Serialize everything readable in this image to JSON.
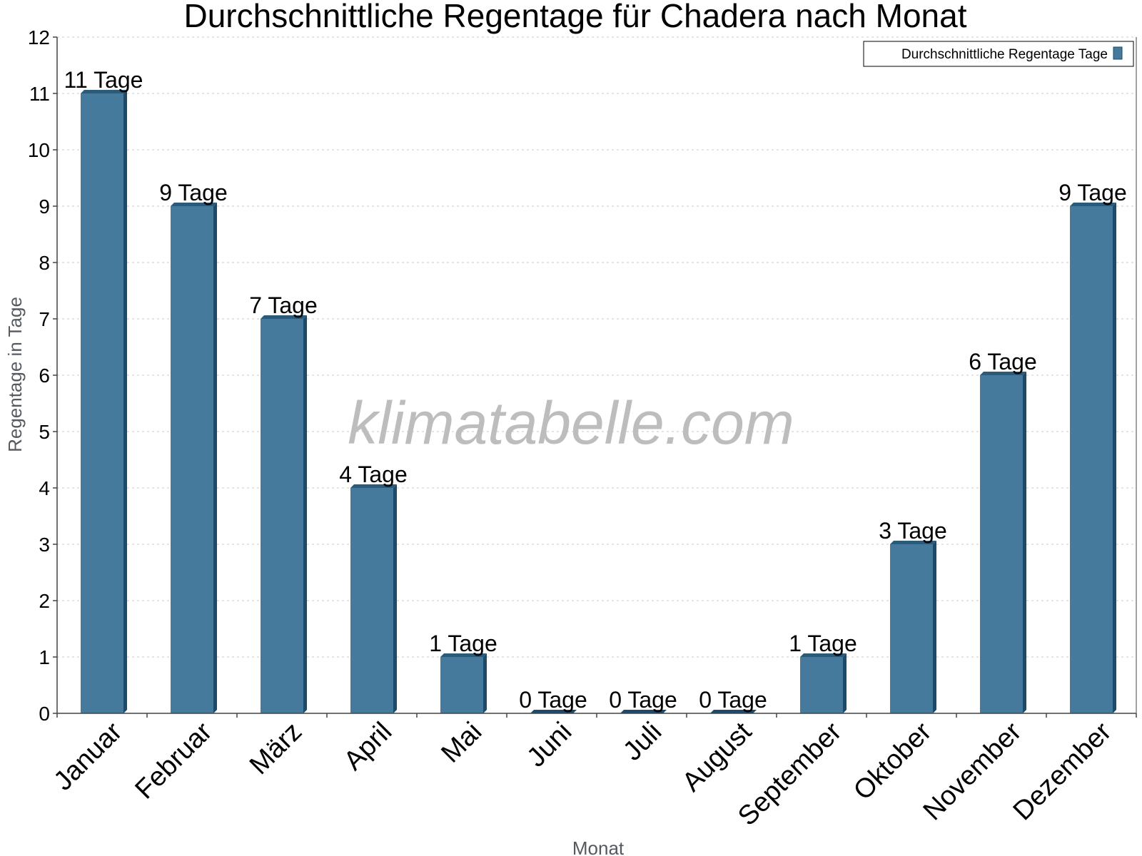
{
  "colors": {
    "bar_front": "#457a9c",
    "bar_side": "#1c4a68",
    "bar_top": "#2a5b7b",
    "axis": "#444444",
    "grid": "#c8c8c8"
  },
  "watermark": "klimatabelle.com",
  "chart_data": {
    "type": "bar",
    "title": "Durchschnittliche Regentage für Chadera nach Monat",
    "xlabel": "Monat",
    "ylabel": "Regentage in Tage",
    "ylim": [
      0,
      12
    ],
    "yticks": [
      0,
      1,
      2,
      3,
      4,
      5,
      6,
      7,
      8,
      9,
      10,
      11,
      12
    ],
    "grid": true,
    "legend_position": "top-right",
    "categories": [
      "Januar",
      "Februar",
      "März",
      "April",
      "Mai",
      "Juni",
      "Juli",
      "August",
      "September",
      "Oktober",
      "November",
      "Dezember"
    ],
    "series": [
      {
        "name": "Durchschnittliche Regentage Tage",
        "values": [
          11,
          9,
          7,
          4,
          1,
          0,
          0,
          0,
          1,
          3,
          6,
          9
        ],
        "data_labels": [
          "11 Tage",
          "9 Tage",
          "7 Tage",
          "4 Tage",
          "1 Tage",
          "0 Tage",
          "0 Tage",
          "0 Tage",
          "1 Tage",
          "3 Tage",
          "6 Tage",
          "9 Tage"
        ]
      }
    ]
  }
}
